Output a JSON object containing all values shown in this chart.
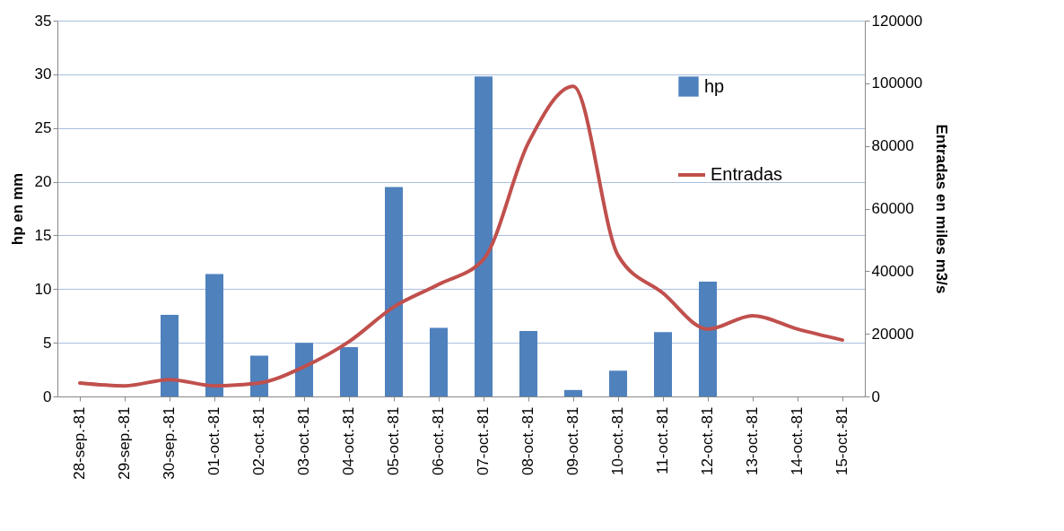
{
  "chart_data": {
    "type": "bar",
    "ylabel": "hp en mm",
    "y2label": "Entradas en miles m3/s",
    "categories": [
      "28-sep.-81",
      "29-sep.-81",
      "30-sep.-81",
      "01-oct.-81",
      "02-oct.-81",
      "03-oct.-81",
      "04-oct.-81",
      "05-oct.-81",
      "06-oct.-81",
      "07-oct.-81",
      "08-oct.-81",
      "09-oct.-81",
      "10-oct.-81",
      "11-oct.-81",
      "12-oct.-81",
      "13-oct.-81",
      "14-oct.-81",
      "15-oct.-81"
    ],
    "series": [
      {
        "name": "hp",
        "color": "#4f81bd",
        "values": [
          null,
          null,
          7.6,
          11.4,
          3.8,
          5.0,
          4.6,
          19.5,
          6.4,
          29.8,
          6.1,
          0.6,
          2.4,
          6.0,
          10.7,
          null,
          null,
          null
        ]
      },
      {
        "name": "Entradas",
        "type": "line",
        "axis": "y2",
        "color": "#c0504d",
        "values": [
          4300,
          3400,
          5400,
          3400,
          4300,
          9500,
          17500,
          28600,
          35800,
          43800,
          81000,
          99000,
          45000,
          33000,
          21500,
          25800,
          21500,
          18000
        ]
      }
    ],
    "ylim": [
      0,
      35
    ],
    "yticks": [
      0,
      5,
      10,
      15,
      20,
      25,
      30,
      35
    ],
    "y2lim": [
      0,
      120000
    ],
    "y2ticks": [
      0,
      20000,
      40000,
      60000,
      80000,
      100000,
      120000
    ],
    "grid": "y",
    "legend": "top right"
  }
}
